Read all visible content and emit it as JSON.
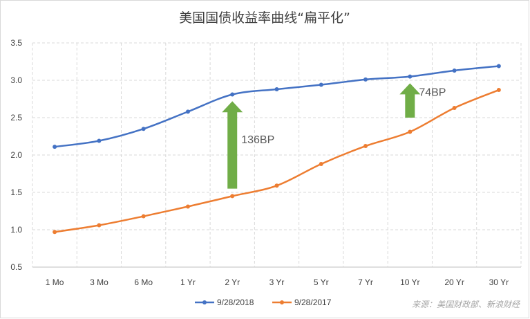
{
  "chart_data": {
    "type": "line",
    "title": "美国国债收益率曲线“扁平化”",
    "categories": [
      "1 Mo",
      "3 Mo",
      "6 Mo",
      "1 Yr",
      "2 Yr",
      "3 Yr",
      "5 Yr",
      "7 Yr",
      "10 Yr",
      "20 Yr",
      "30 Yr"
    ],
    "y_ticks": [
      "0.5",
      "1.0",
      "1.5",
      "2.0",
      "2.5",
      "3.0",
      "3.5"
    ],
    "ylim": [
      0.5,
      3.5
    ],
    "grid": "dashed",
    "legend_position": "bottom",
    "series": [
      {
        "name": "9/28/2018",
        "color": "#4472c4",
        "values": [
          2.11,
          2.19,
          2.35,
          2.58,
          2.81,
          2.88,
          2.94,
          3.01,
          3.05,
          3.13,
          3.19
        ]
      },
      {
        "name": "9/28/2017",
        "color": "#ed7d31",
        "values": [
          0.97,
          1.06,
          1.18,
          1.31,
          1.45,
          1.59,
          1.88,
          2.12,
          2.31,
          2.63,
          2.87
        ]
      }
    ],
    "annotations": [
      {
        "text": "136BP",
        "category_index": 4,
        "from": 1.55,
        "to": 2.72,
        "color": "#70ad47"
      },
      {
        "text": "74BP",
        "category_index": 8,
        "from": 2.5,
        "to": 2.96,
        "color": "#70ad47"
      }
    ]
  },
  "source_note": "来源：美国财政部、新浪财经"
}
